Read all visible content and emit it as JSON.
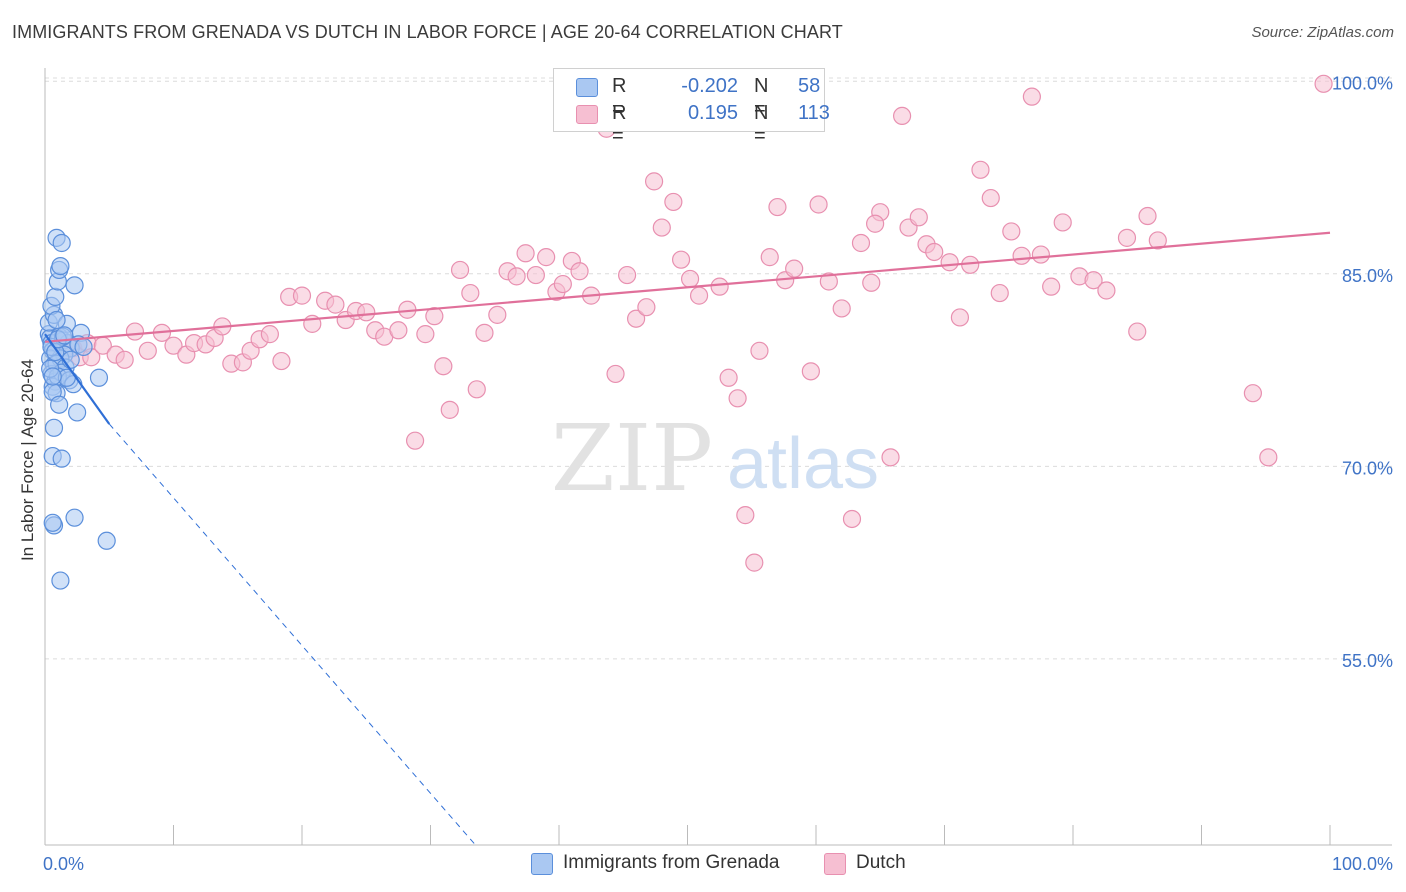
{
  "title": "IMMIGRANTS FROM GRENADA VS DUTCH IN LABOR FORCE | AGE 20-64 CORRELATION CHART",
  "source": "Source: ZipAtlas.com",
  "watermark": {
    "zip": "ZIP",
    "atlas": "atlas"
  },
  "colors": {
    "blue_fill": "#aac8f2",
    "blue_stroke": "#5b8fdb",
    "blue_line": "#2f6fd6",
    "pink_fill": "#f6bfd2",
    "pink_stroke": "#e890b0",
    "pink_line": "#e0709a",
    "tick_label": "#3f73c6",
    "grid": "#dcdcdc"
  },
  "legend": {
    "rows": [
      {
        "r_label": "R =",
        "r_value": "-0.202",
        "n_label": "N =",
        "n_value": "58"
      },
      {
        "r_label": "R =",
        "r_value": "0.195",
        "n_label": "N =",
        "n_value": "113"
      }
    ]
  },
  "chart_data": {
    "type": "scatter",
    "title": "IMMIGRANTS FROM GRENADA VS DUTCH IN LABOR FORCE | AGE 20-64 CORRELATION CHART",
    "xlabel": "",
    "ylabel": "In Labor Force | Age 20-64",
    "xlim": [
      0,
      100
    ],
    "ylim": [
      40.5,
      101.5
    ],
    "x_tick_labels": [
      "0.0%",
      "100.0%"
    ],
    "y_ticks": [
      55,
      70,
      85,
      100
    ],
    "y_tick_labels": [
      "55.0%",
      "70.0%",
      "85.0%",
      "100.0%"
    ],
    "grid": true,
    "legend_position": "bottom",
    "series": [
      {
        "name": "Immigrants from Grenada",
        "color": "#5b8fdb",
        "trend": {
          "x0": 0,
          "y0": 80.3,
          "x1": 5.0,
          "y1": 73.3,
          "dash_to_x": 33.5,
          "dash_to_y": 40.5
        },
        "points": [
          [
            0.3,
            80.3
          ],
          [
            0.4,
            80.0
          ],
          [
            0.5,
            79.6
          ],
          [
            0.6,
            79.0
          ],
          [
            0.4,
            78.4
          ],
          [
            0.7,
            77.9
          ],
          [
            0.5,
            77.2
          ],
          [
            0.8,
            76.6
          ],
          [
            0.6,
            76.2
          ],
          [
            0.9,
            75.7
          ],
          [
            0.3,
            81.2
          ],
          [
            0.7,
            81.8
          ],
          [
            0.5,
            82.5
          ],
          [
            0.8,
            83.2
          ],
          [
            1.0,
            84.4
          ],
          [
            1.1,
            85.3
          ],
          [
            1.2,
            85.6
          ],
          [
            0.9,
            87.8
          ],
          [
            1.3,
            87.4
          ],
          [
            2.3,
            84.1
          ],
          [
            1.7,
            81.1
          ],
          [
            2.8,
            80.4
          ],
          [
            1.1,
            80.1
          ],
          [
            1.4,
            79.8
          ],
          [
            1.8,
            79.6
          ],
          [
            2.0,
            79.2
          ],
          [
            1.5,
            78.7
          ],
          [
            1.2,
            78.4
          ],
          [
            0.9,
            78.0
          ],
          [
            1.6,
            77.7
          ],
          [
            1.3,
            77.3
          ],
          [
            1.0,
            77.0
          ],
          [
            1.9,
            76.7
          ],
          [
            2.2,
            76.4
          ],
          [
            4.2,
            76.9
          ],
          [
            0.6,
            75.8
          ],
          [
            1.1,
            74.8
          ],
          [
            2.5,
            74.2
          ],
          [
            0.7,
            73.0
          ],
          [
            0.6,
            70.8
          ],
          [
            1.3,
            70.6
          ],
          [
            2.3,
            66.0
          ],
          [
            0.7,
            65.4
          ],
          [
            0.6,
            65.6
          ],
          [
            4.8,
            64.2
          ],
          [
            1.2,
            61.1
          ],
          [
            0.5,
            79.3
          ],
          [
            0.8,
            78.9
          ],
          [
            1.4,
            80.1
          ],
          [
            2.0,
            78.3
          ],
          [
            2.6,
            79.5
          ],
          [
            1.7,
            76.9
          ],
          [
            0.4,
            77.6
          ],
          [
            1.0,
            79.9
          ],
          [
            0.9,
            81.4
          ],
          [
            3.0,
            79.3
          ],
          [
            1.5,
            80.2
          ],
          [
            0.6,
            77.0
          ]
        ]
      },
      {
        "name": "Dutch",
        "color": "#e890b0",
        "trend": {
          "x0": 0,
          "y0": 79.7,
          "x1": 100,
          "y1": 88.2
        },
        "points": [
          [
            1.5,
            79.0
          ],
          [
            2.2,
            79.2
          ],
          [
            2.7,
            78.5
          ],
          [
            3.3,
            79.6
          ],
          [
            3.6,
            78.5
          ],
          [
            4.5,
            79.4
          ],
          [
            5.5,
            78.7
          ],
          [
            6.2,
            78.3
          ],
          [
            7.0,
            80.5
          ],
          [
            8.0,
            79.0
          ],
          [
            9.1,
            80.4
          ],
          [
            10.0,
            79.4
          ],
          [
            11.0,
            78.7
          ],
          [
            11.6,
            79.6
          ],
          [
            12.5,
            79.5
          ],
          [
            13.2,
            80.0
          ],
          [
            13.8,
            80.9
          ],
          [
            14.5,
            78.0
          ],
          [
            15.4,
            78.1
          ],
          [
            16.0,
            79.0
          ],
          [
            16.7,
            79.9
          ],
          [
            17.5,
            80.3
          ],
          [
            18.4,
            78.2
          ],
          [
            19.0,
            83.2
          ],
          [
            20.0,
            83.3
          ],
          [
            20.8,
            81.1
          ],
          [
            21.8,
            82.9
          ],
          [
            22.6,
            82.6
          ],
          [
            23.4,
            81.4
          ],
          [
            24.2,
            82.1
          ],
          [
            25.0,
            82.0
          ],
          [
            25.7,
            80.6
          ],
          [
            26.4,
            80.1
          ],
          [
            27.5,
            80.6
          ],
          [
            28.2,
            82.2
          ],
          [
            28.8,
            72.0
          ],
          [
            29.6,
            80.3
          ],
          [
            30.3,
            81.7
          ],
          [
            31.0,
            77.8
          ],
          [
            31.5,
            74.4
          ],
          [
            32.3,
            85.3
          ],
          [
            33.1,
            83.5
          ],
          [
            33.6,
            76.0
          ],
          [
            34.2,
            80.4
          ],
          [
            35.2,
            81.8
          ],
          [
            36.0,
            85.2
          ],
          [
            36.7,
            84.8
          ],
          [
            37.4,
            86.6
          ],
          [
            38.2,
            84.9
          ],
          [
            39.0,
            86.3
          ],
          [
            39.8,
            83.6
          ],
          [
            40.3,
            84.2
          ],
          [
            41.0,
            86.0
          ],
          [
            41.6,
            85.2
          ],
          [
            42.5,
            83.3
          ],
          [
            43.7,
            96.3
          ],
          [
            44.4,
            77.2
          ],
          [
            45.3,
            84.9
          ],
          [
            46.0,
            81.5
          ],
          [
            46.8,
            82.4
          ],
          [
            47.4,
            92.2
          ],
          [
            48.0,
            88.6
          ],
          [
            48.9,
            90.6
          ],
          [
            49.5,
            86.1
          ],
          [
            50.2,
            84.6
          ],
          [
            50.9,
            83.3
          ],
          [
            51.6,
            97.5
          ],
          [
            52.5,
            84.0
          ],
          [
            53.2,
            76.9
          ],
          [
            53.9,
            75.3
          ],
          [
            54.5,
            66.2
          ],
          [
            55.2,
            62.5
          ],
          [
            56.4,
            86.3
          ],
          [
            57.0,
            90.2
          ],
          [
            57.6,
            84.5
          ],
          [
            58.3,
            85.4
          ],
          [
            59.6,
            77.4
          ],
          [
            60.2,
            90.4
          ],
          [
            61.0,
            84.4
          ],
          [
            62.0,
            82.3
          ],
          [
            62.8,
            65.9
          ],
          [
            63.5,
            87.4
          ],
          [
            64.3,
            84.3
          ],
          [
            65.0,
            89.8
          ],
          [
            65.8,
            70.7
          ],
          [
            66.7,
            97.3
          ],
          [
            67.2,
            88.6
          ],
          [
            68.0,
            89.4
          ],
          [
            68.6,
            87.3
          ],
          [
            69.2,
            86.7
          ],
          [
            70.4,
            85.9
          ],
          [
            71.2,
            81.6
          ],
          [
            72.0,
            85.7
          ],
          [
            72.8,
            93.1
          ],
          [
            73.6,
            90.9
          ],
          [
            74.3,
            83.5
          ],
          [
            75.2,
            88.3
          ],
          [
            76.0,
            86.4
          ],
          [
            76.8,
            98.8
          ],
          [
            77.5,
            86.5
          ],
          [
            78.3,
            84.0
          ],
          [
            79.2,
            89.0
          ],
          [
            80.5,
            84.8
          ],
          [
            81.6,
            84.5
          ],
          [
            82.6,
            83.7
          ],
          [
            84.2,
            87.8
          ],
          [
            85.0,
            80.5
          ],
          [
            85.8,
            89.5
          ],
          [
            86.6,
            87.6
          ],
          [
            94.0,
            75.7
          ],
          [
            95.2,
            70.7
          ],
          [
            99.5,
            99.8
          ],
          [
            57.3,
            97.8
          ],
          [
            55.6,
            79.0
          ],
          [
            64.6,
            88.9
          ]
        ]
      }
    ]
  },
  "bottom_legend": [
    {
      "label": "Immigrants from Grenada"
    },
    {
      "label": "Dutch"
    }
  ]
}
